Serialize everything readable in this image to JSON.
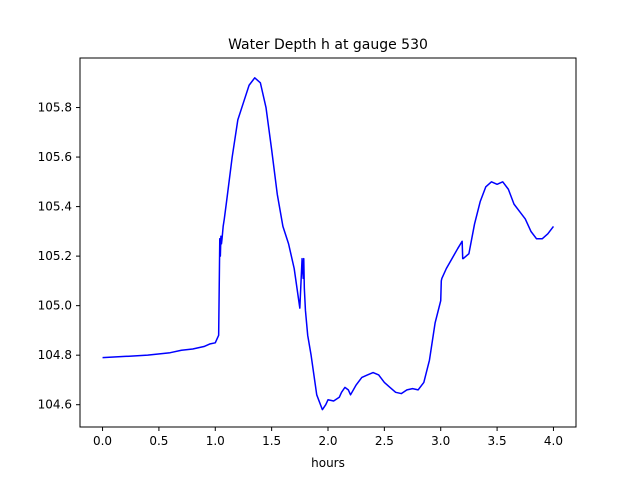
{
  "chart_data": {
    "type": "line",
    "title": "Water Depth h at gauge 530",
    "xlabel": "hours",
    "ylabel": "",
    "xlim": [
      -0.2,
      4.2
    ],
    "ylim": [
      104.51,
      106.0
    ],
    "xticks": [
      0.0,
      0.5,
      1.0,
      1.5,
      2.0,
      2.5,
      3.0,
      3.5,
      4.0
    ],
    "xtick_labels": [
      "0.0",
      "0.5",
      "1.0",
      "1.5",
      "2.0",
      "2.5",
      "3.0",
      "3.5",
      "4.0"
    ],
    "yticks": [
      104.6,
      104.8,
      105.0,
      105.2,
      105.4,
      105.6,
      105.8
    ],
    "ytick_labels": [
      "104.6",
      "104.8",
      "105.0",
      "105.2",
      "105.4",
      "105.6",
      "105.8"
    ],
    "grid": false,
    "series": [
      {
        "color": "#0000ff",
        "x": [
          0.0,
          0.2,
          0.4,
          0.6,
          0.7,
          0.8,
          0.9,
          0.95,
          1.0,
          1.03,
          1.04,
          1.045,
          1.05,
          1.055,
          1.06,
          1.07,
          1.08,
          1.1,
          1.15,
          1.2,
          1.25,
          1.3,
          1.35,
          1.4,
          1.45,
          1.5,
          1.55,
          1.6,
          1.65,
          1.7,
          1.75,
          1.77,
          1.78,
          1.785,
          1.79,
          1.8,
          1.82,
          1.85,
          1.9,
          1.95,
          1.98,
          2.0,
          2.05,
          2.1,
          2.12,
          2.15,
          2.18,
          2.2,
          2.25,
          2.3,
          2.35,
          2.4,
          2.45,
          2.5,
          2.55,
          2.6,
          2.65,
          2.7,
          2.75,
          2.8,
          2.85,
          2.9,
          2.95,
          3.0,
          3.005,
          3.01,
          3.05,
          3.1,
          3.15,
          3.19,
          3.195,
          3.2,
          3.25,
          3.3,
          3.35,
          3.4,
          3.45,
          3.5,
          3.55,
          3.6,
          3.65,
          3.7,
          3.75,
          3.8,
          3.85,
          3.9,
          3.95,
          4.0
        ],
        "y": [
          104.79,
          104.795,
          104.8,
          104.81,
          104.82,
          104.825,
          104.835,
          104.845,
          104.85,
          104.88,
          105.27,
          105.2,
          105.28,
          105.25,
          105.27,
          105.32,
          105.35,
          105.42,
          105.6,
          105.75,
          105.82,
          105.89,
          105.92,
          105.9,
          105.8,
          105.63,
          105.45,
          105.32,
          105.25,
          105.15,
          104.99,
          105.19,
          105.11,
          105.19,
          105.07,
          104.98,
          104.88,
          104.8,
          104.64,
          104.58,
          104.6,
          104.62,
          104.615,
          104.63,
          104.65,
          104.67,
          104.66,
          104.64,
          104.68,
          104.71,
          104.72,
          104.73,
          104.72,
          104.69,
          104.67,
          104.65,
          104.645,
          104.66,
          104.665,
          104.66,
          104.69,
          104.78,
          104.93,
          105.02,
          105.1,
          105.11,
          105.15,
          105.19,
          105.23,
          105.26,
          105.19,
          105.19,
          105.21,
          105.33,
          105.42,
          105.48,
          105.5,
          105.49,
          105.5,
          105.47,
          105.41,
          105.38,
          105.35,
          105.3,
          105.27,
          105.27,
          105.29,
          105.32
        ]
      }
    ]
  }
}
